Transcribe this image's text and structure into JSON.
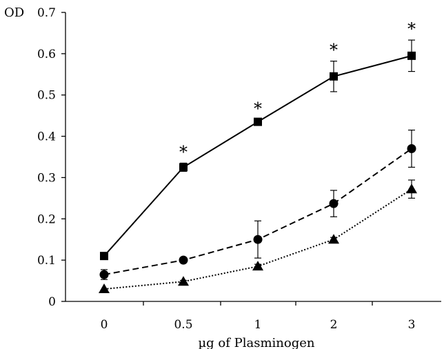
{
  "chart_data": {
    "type": "line",
    "title": "",
    "xlabel": "µg of Plasminogen",
    "ylabel": "OD",
    "categories": [
      "0",
      "0.5",
      "1",
      "2",
      "3"
    ],
    "ylim": [
      0,
      0.7
    ],
    "yticks": [
      "0",
      "0.1",
      "0.2",
      "0.3",
      "0.4",
      "0.5",
      "0.6",
      "0.7"
    ],
    "grid": false,
    "legend": "none",
    "series": [
      {
        "marker": "square",
        "line_style": "solid",
        "values": [
          0.11,
          0.325,
          0.435,
          0.545,
          0.595
        ],
        "errors": [
          0.0,
          0.01,
          0.005,
          0.037,
          0.038
        ],
        "significance": [
          "",
          "*",
          "*",
          "*",
          "*"
        ]
      },
      {
        "marker": "circle",
        "line_style": "dashed",
        "values": [
          0.065,
          0.1,
          0.15,
          0.237,
          0.37
        ],
        "errors": [
          0.012,
          0.003,
          0.045,
          0.032,
          0.045
        ],
        "significance": [
          "",
          "",
          "",
          "",
          ""
        ]
      },
      {
        "marker": "triangle",
        "line_style": "dotted",
        "values": [
          0.03,
          0.048,
          0.085,
          0.15,
          0.272
        ],
        "errors": [
          0.0,
          0.003,
          0.005,
          0.005,
          0.022
        ],
        "significance": [
          "",
          "",
          "",
          "",
          ""
        ]
      }
    ]
  }
}
